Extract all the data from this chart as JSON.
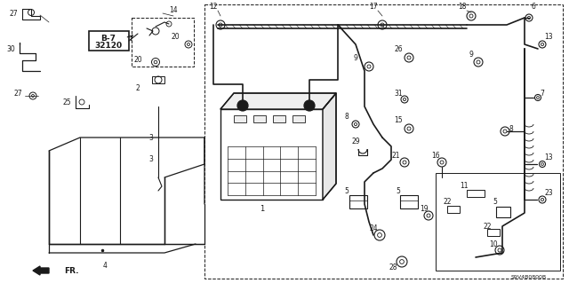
{
  "bg_color": "#ffffff",
  "line_color": "#1a1a1a",
  "watermark": "S9V4B0800B",
  "figsize": [
    6.4,
    3.19
  ],
  "dpi": 100
}
